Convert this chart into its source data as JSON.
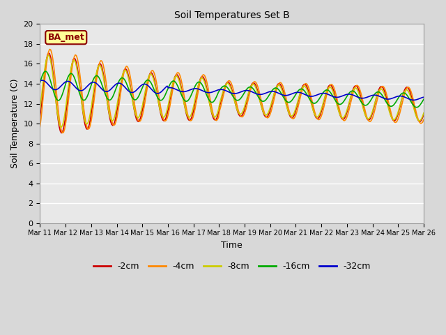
{
  "title": "Soil Temperatures Set B",
  "xlabel": "Time",
  "ylabel": "Soil Temperature (C)",
  "ylim": [
    0,
    20
  ],
  "background_color": "#e8e8e8",
  "fig_bg": "#d8d8d8",
  "grid_color": "white",
  "annotation_text": "BA_met",
  "annotation_bg": "#ffff99",
  "annotation_border": "#8b0000",
  "series": {
    "neg2cm": {
      "color": "#cc0000",
      "label": "-2cm",
      "lw": 1.2
    },
    "neg4cm": {
      "color": "#ff8800",
      "label": "-4cm",
      "lw": 1.2
    },
    "neg8cm": {
      "color": "#cccc00",
      "label": "-8cm",
      "lw": 1.2
    },
    "neg16cm": {
      "color": "#00aa00",
      "label": "-16cm",
      "lw": 1.2
    },
    "neg32cm": {
      "color": "#0000cc",
      "label": "-32cm",
      "lw": 1.2
    }
  },
  "xtick_labels": [
    "Mar 11",
    "Mar 12",
    "Mar 13",
    "Mar 14",
    "Mar 15",
    "Mar 16",
    "Mar 17",
    "Mar 18",
    "Mar 19",
    "Mar 20",
    "Mar 21",
    "Mar 22",
    "Mar 23",
    "Mar 24",
    "Mar 25",
    "Mar 26"
  ],
  "ytick_vals": [
    0,
    2,
    4,
    6,
    8,
    10,
    12,
    14,
    16,
    18,
    20
  ]
}
